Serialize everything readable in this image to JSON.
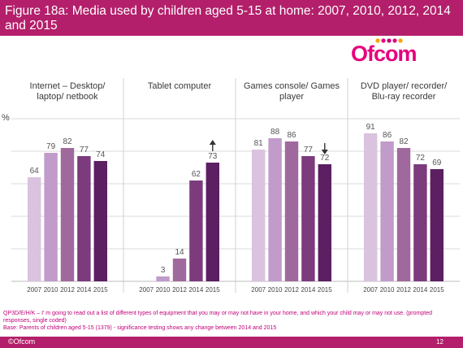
{
  "header": {
    "title": "Figure 18a: Media used by children aged 5-15 at home: 2007, 2010, 2012, 2014 and 2015"
  },
  "logo": {
    "text": "Ofcom"
  },
  "colors": {
    "title_bar": "#b31f6a",
    "series": [
      "#d9c3de",
      "#c19bca",
      "#a0699d",
      "#7b3b7c",
      "#5b1f62"
    ],
    "text_accent": "#c0007a"
  },
  "chart_data": {
    "type": "bar",
    "ylabel": "%",
    "ylim": [
      0,
      100
    ],
    "grid": true,
    "categories": [
      "2007",
      "2010",
      "2012",
      "2014",
      "2015"
    ],
    "panels": [
      {
        "title": "Internet – Desktop/ laptop/ netbook",
        "values": [
          64,
          79,
          82,
          77,
          74
        ],
        "change_marker": ""
      },
      {
        "title": "Tablet computer",
        "values": [
          null,
          3,
          14,
          62,
          73
        ],
        "change_marker": "up"
      },
      {
        "title": "Games console/ Games player",
        "values": [
          81,
          88,
          86,
          77,
          72
        ],
        "change_marker": "down"
      },
      {
        "title": "DVD player/ recorder/ Blu-ray recorder",
        "values": [
          91,
          86,
          82,
          72,
          69
        ],
        "change_marker": ""
      }
    ]
  },
  "footnote": {
    "line1": "QP3D/E/H/K – I’ m going to read out a list of different types of equipment that you may or may not have in your home, and which your child may or may not use. (prompted responses, single coded)",
    "line2": "Base: Parents of children aged 5-15 (1379) - significance testing shows any change between 2014 and 2015"
  },
  "footer": {
    "copyright": "©Ofcom",
    "page_number": "12"
  }
}
